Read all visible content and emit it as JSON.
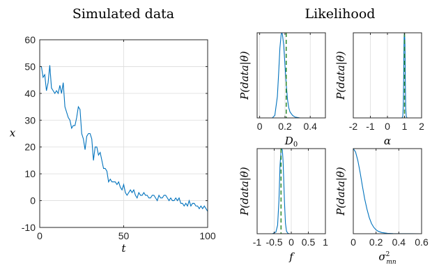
{
  "titles": {
    "left": "Simulated data",
    "right": "Likelihood"
  },
  "colors": {
    "line": "#0072BD",
    "dashed": "#2E8B2E"
  },
  "chart_data": [
    {
      "id": "simulated",
      "type": "line",
      "title": "Simulated data",
      "xlabel": "t",
      "ylabel": "x",
      "xlim": [
        0,
        100
      ],
      "ylim": [
        -10,
        60
      ],
      "xticks": [
        0,
        50,
        100
      ],
      "xtick_labels": [
        "0",
        "50",
        "100"
      ],
      "yticks": [
        -10,
        0,
        10,
        20,
        30,
        40,
        50,
        60
      ],
      "ytick_labels": [
        "-10",
        "0",
        "10",
        "20",
        "30",
        "40",
        "50",
        "60"
      ],
      "grid": true,
      "series": [
        {
          "x": [
            0,
            1,
            2,
            3,
            4,
            5,
            6,
            7,
            8,
            9,
            10,
            11,
            12,
            13,
            14,
            15,
            16,
            17,
            18,
            19,
            20,
            21,
            22,
            23,
            24,
            25,
            26,
            27,
            28,
            29,
            30,
            31,
            32,
            33,
            34,
            35,
            36,
            37,
            38,
            39,
            40,
            41,
            42,
            43,
            44,
            45,
            46,
            47,
            48,
            49,
            50,
            51,
            52,
            53,
            54,
            55,
            56,
            57,
            58,
            59,
            60,
            61,
            62,
            63,
            64,
            65,
            66,
            67,
            68,
            69,
            70,
            71,
            72,
            73,
            74,
            75,
            76,
            77,
            78,
            79,
            80,
            81,
            82,
            83,
            84,
            85,
            86,
            87,
            88,
            89,
            90,
            91,
            92,
            93,
            94,
            95,
            96,
            97,
            98,
            99,
            100
          ],
          "y": [
            50,
            50,
            46,
            47,
            41,
            44,
            50.5,
            42,
            41,
            40,
            41,
            40,
            43,
            40,
            44,
            35,
            33,
            31,
            30,
            27,
            28,
            28,
            31,
            35,
            34,
            25,
            23,
            19,
            24,
            25,
            25,
            23,
            15,
            20,
            20,
            17,
            18,
            15,
            12,
            12,
            11,
            7,
            8,
            7,
            7,
            7,
            6,
            7,
            5,
            4,
            6,
            3,
            2,
            3,
            4,
            3,
            4,
            2,
            1,
            3,
            2,
            2,
            3,
            2,
            2,
            1,
            1,
            2,
            2,
            1,
            0,
            2,
            1,
            1,
            2,
            2,
            1,
            0,
            1,
            0,
            0,
            1,
            0,
            1,
            -1,
            -1,
            -2,
            -1,
            -2,
            0,
            -2,
            -1,
            -1,
            -2,
            -2,
            -3,
            -2,
            -3,
            -2,
            -3,
            -4
          ]
        }
      ]
    },
    {
      "id": "D0",
      "type": "line",
      "xlabel": "D_0",
      "ylabel": "P(data|θ)",
      "xlim": [
        -0.02,
        0.52
      ],
      "xticks": [
        0,
        0.2,
        0.4
      ],
      "xtick_labels": [
        "0",
        "0.2",
        "0.4"
      ],
      "grid": true,
      "dashed_x": 0.21,
      "series": [
        {
          "x": [
            0.1,
            0.12,
            0.14,
            0.15,
            0.16,
            0.17,
            0.175,
            0.18,
            0.19,
            0.2,
            0.21,
            0.22,
            0.23,
            0.24,
            0.26,
            0.28,
            0.3,
            0.32
          ],
          "y": [
            0,
            0.03,
            0.25,
            0.52,
            0.82,
            0.98,
            1.0,
            0.98,
            0.86,
            0.62,
            0.4,
            0.22,
            0.12,
            0.07,
            0.03,
            0.01,
            0.005,
            0
          ]
        }
      ]
    },
    {
      "id": "alpha",
      "type": "line",
      "xlabel": "α",
      "ylabel": "P(data|θ)",
      "xlim": [
        -2,
        2
      ],
      "xticks": [
        -2,
        -1,
        0,
        1,
        2
      ],
      "xtick_labels": [
        "-2",
        "-1",
        "0",
        "1",
        "2"
      ],
      "grid": true,
      "dashed_x": 1.0,
      "series": [
        {
          "x": [
            0.85,
            0.9,
            0.93,
            0.95,
            0.97,
            0.98,
            1.0,
            1.02,
            1.03,
            1.05,
            1.07,
            1.1,
            1.15
          ],
          "y": [
            0,
            0.02,
            0.15,
            0.45,
            0.85,
            0.97,
            1.0,
            0.92,
            0.8,
            0.4,
            0.12,
            0.02,
            0
          ]
        }
      ]
    },
    {
      "id": "f",
      "type": "line",
      "xlabel": "f",
      "ylabel": "P(data|θ)",
      "xlim": [
        -1,
        1
      ],
      "xticks": [
        -1,
        -0.5,
        0,
        0.5,
        1
      ],
      "xtick_labels": [
        "-1",
        "-0.5",
        "0",
        "0.5",
        "1"
      ],
      "grid": true,
      "dashed_x": -0.3,
      "series": [
        {
          "x": [
            -0.55,
            -0.45,
            -0.4,
            -0.36,
            -0.33,
            -0.3,
            -0.28,
            -0.26,
            -0.24,
            -0.22,
            -0.2,
            -0.17,
            -0.14,
            -0.1,
            -0.05
          ],
          "y": [
            0,
            0.02,
            0.1,
            0.4,
            0.8,
            0.97,
            1.0,
            0.98,
            0.85,
            0.62,
            0.38,
            0.12,
            0.03,
            0.005,
            0
          ]
        }
      ]
    },
    {
      "id": "sigma",
      "type": "line",
      "xlabel": "σ²_mn",
      "ylabel": "P(data|θ)",
      "xlim": [
        0,
        0.6
      ],
      "xticks": [
        0,
        0.2,
        0.4,
        0.6
      ],
      "xtick_labels": [
        "0",
        "0.2",
        "0.4",
        "0.6"
      ],
      "grid": true,
      "series": [
        {
          "x": [
            0,
            0.02,
            0.04,
            0.06,
            0.08,
            0.1,
            0.12,
            0.14,
            0.16,
            0.18,
            0.2,
            0.22,
            0.25,
            0.3,
            0.35,
            0.4,
            0.45,
            0.5,
            0.6
          ],
          "y": [
            1.0,
            0.96,
            0.86,
            0.72,
            0.56,
            0.41,
            0.29,
            0.19,
            0.12,
            0.075,
            0.045,
            0.028,
            0.014,
            0.005,
            0.002,
            0.001,
            0.0005,
            0.0002,
            0
          ]
        }
      ]
    }
  ]
}
